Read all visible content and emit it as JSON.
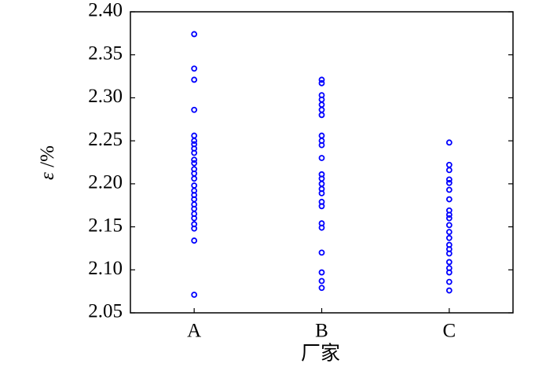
{
  "chart_data": {
    "type": "strip",
    "x_label": "厂家",
    "y_label_symbol": "ε",
    "y_label_unit": " /%",
    "categories": [
      "A",
      "B",
      "C"
    ],
    "color": "#0000ff",
    "values": [
      [
        2.374,
        2.334,
        2.321,
        2.286,
        2.256,
        2.25,
        2.246,
        2.241,
        2.236,
        2.228,
        2.224,
        2.217,
        2.212,
        2.206,
        2.198,
        2.192,
        2.187,
        2.182,
        2.176,
        2.171,
        2.165,
        2.16,
        2.153,
        2.148,
        2.134,
        2.071
      ],
      [
        2.321,
        2.317,
        2.303,
        2.298,
        2.292,
        2.286,
        2.28,
        2.256,
        2.25,
        2.245,
        2.23,
        2.211,
        2.206,
        2.2,
        2.194,
        2.189,
        2.179,
        2.174,
        2.154,
        2.149,
        2.12,
        2.097,
        2.087,
        2.079
      ],
      [
        2.248,
        2.222,
        2.216,
        2.205,
        2.201,
        2.193,
        2.182,
        2.169,
        2.164,
        2.16,
        2.152,
        2.144,
        2.137,
        2.129,
        2.124,
        2.119,
        2.109,
        2.102,
        2.097,
        2.086,
        2.076
      ]
    ],
    "ylim": [
      2.05,
      2.4
    ],
    "yticks": [
      2.05,
      {
        "value": 2.1,
        "label": "2.10"
      },
      2.15,
      {
        "value": 2.2,
        "label": "2.20"
      },
      2.25,
      {
        "value": 2.3,
        "label": "2.30"
      },
      2.35,
      {
        "value": 2.4,
        "label": "2.40"
      }
    ]
  }
}
